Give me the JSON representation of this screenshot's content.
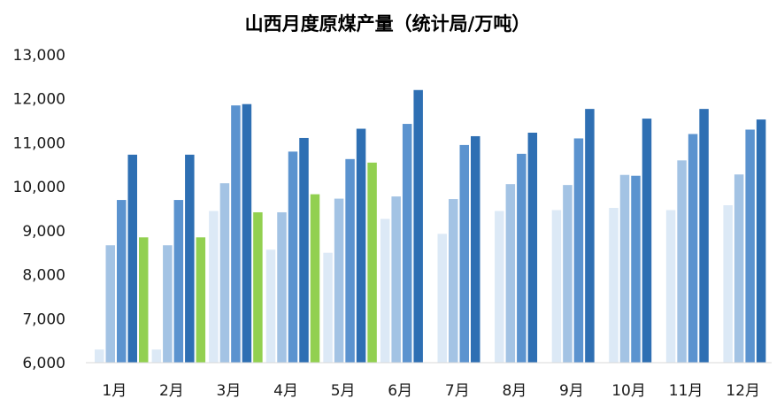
{
  "chart_data": {
    "type": "bar",
    "title": "山西月度原煤产量（统计局/万吨）",
    "categories": [
      "1月",
      "2月",
      "3月",
      "4月",
      "5月",
      "6月",
      "7月",
      "8月",
      "9月",
      "10月",
      "11月",
      "12月"
    ],
    "ylim": [
      6000,
      13000
    ],
    "yticks": [
      "6,000",
      "7,000",
      "8,000",
      "9,000",
      "10,000",
      "11,000",
      "12,000",
      "13,000"
    ],
    "ytick_values": [
      6000,
      7000,
      8000,
      9000,
      10000,
      11000,
      12000,
      13000
    ],
    "grid": false,
    "legend": "none",
    "series": [
      {
        "color": "#dce9f6",
        "values": [
          6300,
          6300,
          9450,
          8570,
          8500,
          9270,
          8930,
          9450,
          9470,
          9520,
          9470,
          9580
        ]
      },
      {
        "color": "#a3c3e4",
        "values": [
          8670,
          8670,
          10080,
          9420,
          9730,
          9780,
          9720,
          10060,
          10040,
          10270,
          10600,
          10280
        ]
      },
      {
        "color": "#5b93cf",
        "values": [
          9700,
          9700,
          11850,
          10800,
          10630,
          11430,
          10950,
          10750,
          11100,
          10250,
          11200,
          11300
        ]
      },
      {
        "color": "#2e6fb3",
        "values": [
          10730,
          10730,
          11880,
          11110,
          11320,
          12200,
          11150,
          11230,
          11770,
          11550,
          11770,
          11530
        ]
      },
      {
        "color": "#92d050",
        "values": [
          8850,
          8850,
          9420,
          9830,
          10550,
          null,
          null,
          null,
          null,
          null,
          null,
          null
        ]
      }
    ]
  }
}
